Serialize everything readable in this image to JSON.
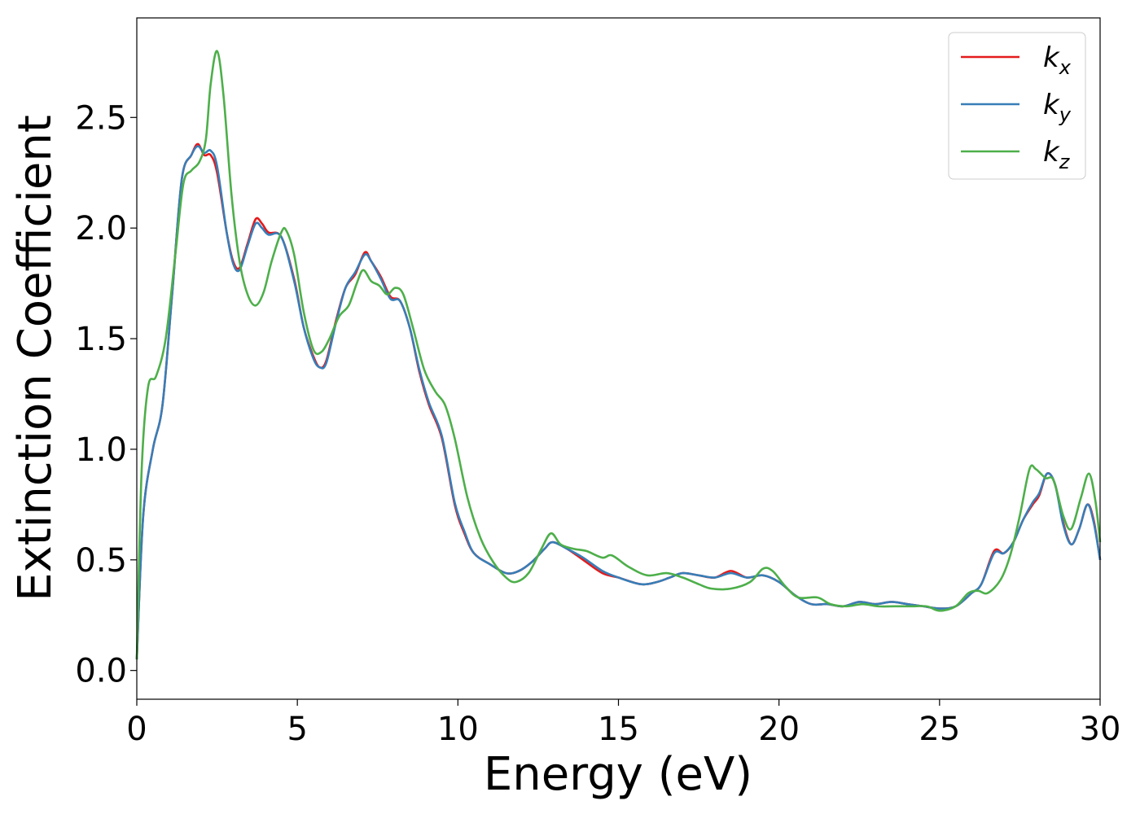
{
  "chart_data": {
    "type": "line",
    "title": "",
    "xlabel": "Energy (eV)",
    "ylabel": "Extinction Coefficient",
    "xlim": [
      0,
      30
    ],
    "ylim": [
      -0.13,
      2.95
    ],
    "xticks": [
      0,
      5,
      10,
      15,
      20,
      25,
      30
    ],
    "xtick_labels": [
      "0",
      "5",
      "10",
      "15",
      "20",
      "25",
      "30"
    ],
    "yticks": [
      0.0,
      0.5,
      1.0,
      1.5,
      2.0,
      2.5
    ],
    "ytick_labels": [
      "0.0",
      "0.5",
      "1.0",
      "1.5",
      "2.0",
      "2.5"
    ],
    "grid": false,
    "legend_position": "top-right",
    "series": [
      {
        "name": "k",
        "subscript": "x",
        "color": "#e41a1c",
        "points": [
          [
            0,
            0.05
          ],
          [
            0.2,
            0.7
          ],
          [
            0.5,
            1.0
          ],
          [
            0.8,
            1.2
          ],
          [
            1.1,
            1.7
          ],
          [
            1.4,
            2.22
          ],
          [
            1.7,
            2.33
          ],
          [
            1.9,
            2.38
          ],
          [
            2.1,
            2.33
          ],
          [
            2.3,
            2.33
          ],
          [
            2.5,
            2.25
          ],
          [
            2.8,
            1.98
          ],
          [
            3.0,
            1.85
          ],
          [
            3.2,
            1.82
          ],
          [
            3.45,
            1.93
          ],
          [
            3.7,
            2.04
          ],
          [
            3.9,
            2.02
          ],
          [
            4.1,
            1.98
          ],
          [
            4.5,
            1.96
          ],
          [
            4.9,
            1.77
          ],
          [
            5.2,
            1.55
          ],
          [
            5.5,
            1.42
          ],
          [
            5.7,
            1.37
          ],
          [
            5.9,
            1.4
          ],
          [
            6.2,
            1.58
          ],
          [
            6.5,
            1.73
          ],
          [
            6.8,
            1.79
          ],
          [
            7.1,
            1.89
          ],
          [
            7.3,
            1.85
          ],
          [
            7.6,
            1.78
          ],
          [
            7.9,
            1.69
          ],
          [
            8.2,
            1.67
          ],
          [
            8.5,
            1.55
          ],
          [
            8.8,
            1.35
          ],
          [
            9.1,
            1.2
          ],
          [
            9.5,
            1.05
          ],
          [
            9.9,
            0.75
          ],
          [
            10.2,
            0.62
          ],
          [
            10.5,
            0.53
          ],
          [
            11.0,
            0.48
          ],
          [
            11.5,
            0.44
          ],
          [
            11.9,
            0.45
          ],
          [
            12.3,
            0.49
          ],
          [
            12.7,
            0.55
          ],
          [
            12.95,
            0.58
          ],
          [
            13.4,
            0.55
          ],
          [
            13.9,
            0.5
          ],
          [
            14.5,
            0.44
          ],
          [
            15.0,
            0.42
          ],
          [
            15.7,
            0.39
          ],
          [
            16.2,
            0.4
          ],
          [
            16.6,
            0.42
          ],
          [
            17.0,
            0.44
          ],
          [
            17.5,
            0.43
          ],
          [
            18.0,
            0.42
          ],
          [
            18.5,
            0.45
          ],
          [
            19.0,
            0.42
          ],
          [
            19.5,
            0.43
          ],
          [
            20.0,
            0.4
          ],
          [
            20.5,
            0.34
          ],
          [
            21.0,
            0.3
          ],
          [
            21.5,
            0.3
          ],
          [
            22.0,
            0.29
          ],
          [
            22.5,
            0.31
          ],
          [
            23.0,
            0.3
          ],
          [
            23.5,
            0.31
          ],
          [
            24.0,
            0.3
          ],
          [
            24.5,
            0.29
          ],
          [
            25.0,
            0.28
          ],
          [
            25.5,
            0.29
          ],
          [
            26.0,
            0.35
          ],
          [
            26.3,
            0.39
          ],
          [
            26.7,
            0.54
          ],
          [
            27.0,
            0.53
          ],
          [
            27.3,
            0.58
          ],
          [
            27.6,
            0.68
          ],
          [
            27.9,
            0.75
          ],
          [
            28.1,
            0.79
          ],
          [
            28.35,
            0.89
          ],
          [
            28.6,
            0.84
          ],
          [
            28.85,
            0.67
          ],
          [
            29.1,
            0.57
          ],
          [
            29.35,
            0.64
          ],
          [
            29.6,
            0.75
          ],
          [
            29.8,
            0.68
          ],
          [
            30.0,
            0.5
          ]
        ]
      },
      {
        "name": "k",
        "subscript": "y",
        "color": "#377eb8",
        "points": [
          [
            0,
            0.05
          ],
          [
            0.2,
            0.7
          ],
          [
            0.5,
            1.0
          ],
          [
            0.8,
            1.2
          ],
          [
            1.1,
            1.7
          ],
          [
            1.4,
            2.22
          ],
          [
            1.7,
            2.33
          ],
          [
            1.9,
            2.37
          ],
          [
            2.1,
            2.34
          ],
          [
            2.3,
            2.35
          ],
          [
            2.5,
            2.28
          ],
          [
            2.8,
            1.98
          ],
          [
            3.0,
            1.84
          ],
          [
            3.2,
            1.81
          ],
          [
            3.45,
            1.92
          ],
          [
            3.7,
            2.02
          ],
          [
            3.9,
            2.0
          ],
          [
            4.1,
            1.97
          ],
          [
            4.5,
            1.96
          ],
          [
            4.9,
            1.76
          ],
          [
            5.2,
            1.55
          ],
          [
            5.5,
            1.41
          ],
          [
            5.7,
            1.37
          ],
          [
            5.9,
            1.39
          ],
          [
            6.2,
            1.57
          ],
          [
            6.5,
            1.73
          ],
          [
            6.8,
            1.8
          ],
          [
            7.1,
            1.88
          ],
          [
            7.3,
            1.85
          ],
          [
            7.6,
            1.77
          ],
          [
            7.9,
            1.68
          ],
          [
            8.2,
            1.67
          ],
          [
            8.5,
            1.55
          ],
          [
            8.8,
            1.36
          ],
          [
            9.1,
            1.21
          ],
          [
            9.5,
            1.06
          ],
          [
            9.9,
            0.76
          ],
          [
            10.2,
            0.63
          ],
          [
            10.5,
            0.53
          ],
          [
            11.0,
            0.48
          ],
          [
            11.5,
            0.44
          ],
          [
            11.9,
            0.45
          ],
          [
            12.3,
            0.49
          ],
          [
            12.7,
            0.55
          ],
          [
            12.95,
            0.58
          ],
          [
            13.4,
            0.55
          ],
          [
            13.9,
            0.51
          ],
          [
            14.5,
            0.45
          ],
          [
            15.0,
            0.42
          ],
          [
            15.7,
            0.39
          ],
          [
            16.2,
            0.4
          ],
          [
            16.6,
            0.42
          ],
          [
            17.0,
            0.44
          ],
          [
            17.5,
            0.43
          ],
          [
            18.0,
            0.42
          ],
          [
            18.5,
            0.44
          ],
          [
            19.0,
            0.42
          ],
          [
            19.5,
            0.43
          ],
          [
            20.0,
            0.4
          ],
          [
            20.5,
            0.34
          ],
          [
            21.0,
            0.3
          ],
          [
            21.5,
            0.3
          ],
          [
            22.0,
            0.29
          ],
          [
            22.5,
            0.31
          ],
          [
            23.0,
            0.3
          ],
          [
            23.5,
            0.31
          ],
          [
            24.0,
            0.3
          ],
          [
            24.5,
            0.29
          ],
          [
            25.0,
            0.28
          ],
          [
            25.5,
            0.29
          ],
          [
            26.0,
            0.35
          ],
          [
            26.3,
            0.39
          ],
          [
            26.7,
            0.53
          ],
          [
            27.0,
            0.53
          ],
          [
            27.3,
            0.58
          ],
          [
            27.6,
            0.68
          ],
          [
            27.9,
            0.76
          ],
          [
            28.1,
            0.8
          ],
          [
            28.35,
            0.89
          ],
          [
            28.6,
            0.84
          ],
          [
            28.85,
            0.66
          ],
          [
            29.1,
            0.57
          ],
          [
            29.35,
            0.64
          ],
          [
            29.6,
            0.75
          ],
          [
            29.8,
            0.67
          ],
          [
            30.0,
            0.5
          ]
        ]
      },
      {
        "name": "k",
        "subscript": "z",
        "color": "#4daf4a",
        "points": [
          [
            0,
            0.05
          ],
          [
            0.15,
            0.9
          ],
          [
            0.35,
            1.28
          ],
          [
            0.6,
            1.33
          ],
          [
            0.9,
            1.5
          ],
          [
            1.2,
            1.88
          ],
          [
            1.45,
            2.2
          ],
          [
            1.7,
            2.26
          ],
          [
            1.95,
            2.3
          ],
          [
            2.15,
            2.4
          ],
          [
            2.3,
            2.65
          ],
          [
            2.5,
            2.8
          ],
          [
            2.7,
            2.6
          ],
          [
            2.95,
            2.15
          ],
          [
            3.2,
            1.85
          ],
          [
            3.45,
            1.7
          ],
          [
            3.7,
            1.65
          ],
          [
            3.95,
            1.71
          ],
          [
            4.2,
            1.85
          ],
          [
            4.5,
            1.98
          ],
          [
            4.65,
            1.99
          ],
          [
            4.9,
            1.88
          ],
          [
            5.2,
            1.62
          ],
          [
            5.5,
            1.45
          ],
          [
            5.75,
            1.44
          ],
          [
            6.0,
            1.5
          ],
          [
            6.3,
            1.6
          ],
          [
            6.6,
            1.65
          ],
          [
            6.85,
            1.75
          ],
          [
            7.05,
            1.81
          ],
          [
            7.3,
            1.76
          ],
          [
            7.55,
            1.74
          ],
          [
            7.8,
            1.7
          ],
          [
            8.05,
            1.73
          ],
          [
            8.3,
            1.7
          ],
          [
            8.6,
            1.55
          ],
          [
            8.95,
            1.36
          ],
          [
            9.3,
            1.26
          ],
          [
            9.6,
            1.2
          ],
          [
            9.9,
            1.05
          ],
          [
            10.3,
            0.78
          ],
          [
            10.7,
            0.6
          ],
          [
            11.1,
            0.49
          ],
          [
            11.5,
            0.42
          ],
          [
            11.8,
            0.4
          ],
          [
            12.2,
            0.44
          ],
          [
            12.6,
            0.55
          ],
          [
            12.9,
            0.62
          ],
          [
            13.2,
            0.57
          ],
          [
            13.6,
            0.55
          ],
          [
            14.0,
            0.54
          ],
          [
            14.5,
            0.51
          ],
          [
            14.8,
            0.52
          ],
          [
            15.3,
            0.47
          ],
          [
            15.9,
            0.43
          ],
          [
            16.5,
            0.44
          ],
          [
            17.0,
            0.42
          ],
          [
            17.5,
            0.39
          ],
          [
            17.9,
            0.37
          ],
          [
            18.5,
            0.37
          ],
          [
            19.1,
            0.4
          ],
          [
            19.5,
            0.46
          ],
          [
            19.8,
            0.45
          ],
          [
            20.2,
            0.38
          ],
          [
            20.6,
            0.33
          ],
          [
            21.2,
            0.33
          ],
          [
            21.6,
            0.3
          ],
          [
            22.1,
            0.29
          ],
          [
            22.6,
            0.3
          ],
          [
            23.1,
            0.29
          ],
          [
            23.6,
            0.29
          ],
          [
            24.1,
            0.29
          ],
          [
            24.6,
            0.29
          ],
          [
            25.0,
            0.27
          ],
          [
            25.5,
            0.29
          ],
          [
            25.9,
            0.35
          ],
          [
            26.2,
            0.36
          ],
          [
            26.5,
            0.35
          ],
          [
            26.9,
            0.41
          ],
          [
            27.2,
            0.52
          ],
          [
            27.5,
            0.7
          ],
          [
            27.8,
            0.91
          ],
          [
            28.0,
            0.91
          ],
          [
            28.3,
            0.87
          ],
          [
            28.55,
            0.86
          ],
          [
            28.85,
            0.7
          ],
          [
            29.1,
            0.64
          ],
          [
            29.4,
            0.78
          ],
          [
            29.65,
            0.89
          ],
          [
            29.85,
            0.77
          ],
          [
            30.0,
            0.58
          ]
        ]
      }
    ]
  }
}
